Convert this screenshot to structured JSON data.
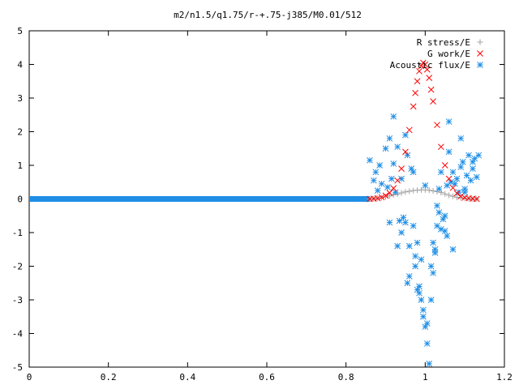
{
  "chart_data": {
    "type": "scatter",
    "title": "m2/n1.5/q1.75/r-+.75-j385/M0.01/512",
    "xlabel": "",
    "ylabel": "",
    "xlim": [
      0,
      1.2
    ],
    "ylim": [
      -5,
      5
    ],
    "x_ticks": [
      "0",
      "0.2",
      "0.4",
      "0.6",
      "0.8",
      "1",
      "1.2"
    ],
    "y_ticks": [
      "-5",
      "-4",
      "-3",
      "-2",
      "-1",
      "0",
      "1",
      "2",
      "3",
      "4",
      "5"
    ],
    "grid": false,
    "legend_position": "top-right",
    "series": [
      {
        "name": "R stress/E",
        "marker": "plus",
        "color": "#a0a0a0",
        "x": [
          0.86,
          0.87,
          0.88,
          0.89,
          0.9,
          0.91,
          0.92,
          0.93,
          0.94,
          0.95,
          0.96,
          0.97,
          0.98,
          0.99,
          1.0,
          1.01,
          1.02,
          1.03,
          1.04,
          1.05,
          1.06,
          1.07,
          1.08,
          1.09,
          1.1,
          1.11,
          1.12,
          1.13
        ],
        "y": [
          0.0,
          0.01,
          0.02,
          0.04,
          0.06,
          0.09,
          0.12,
          0.15,
          0.18,
          0.21,
          0.23,
          0.25,
          0.26,
          0.27,
          0.27,
          0.26,
          0.24,
          0.22,
          0.19,
          0.15,
          0.11,
          0.08,
          0.05,
          0.03,
          0.02,
          0.01,
          0.0,
          0.0
        ]
      },
      {
        "name": "G work/E",
        "marker": "cross",
        "color": "#ff0000",
        "x": [
          0.86,
          0.87,
          0.88,
          0.89,
          0.9,
          0.91,
          0.92,
          0.93,
          0.94,
          0.95,
          0.96,
          0.97,
          0.975,
          0.98,
          0.985,
          0.99,
          0.995,
          1.0,
          1.005,
          1.01,
          1.015,
          1.02,
          1.03,
          1.04,
          1.05,
          1.06,
          1.07,
          1.08,
          1.09,
          1.1,
          1.11,
          1.12,
          1.13
        ],
        "y": [
          0.0,
          0.01,
          0.02,
          0.05,
          0.1,
          0.18,
          0.32,
          0.55,
          0.9,
          1.4,
          2.05,
          2.75,
          3.15,
          3.5,
          3.8,
          3.95,
          4.05,
          4.0,
          3.85,
          3.6,
          3.25,
          2.9,
          2.2,
          1.55,
          1.0,
          0.6,
          0.33,
          0.17,
          0.08,
          0.04,
          0.02,
          0.01,
          0.0
        ]
      },
      {
        "name": "Acoustic flux/E",
        "marker": "star",
        "color": "#1f8fe6",
        "x": [
          0.86,
          0.87,
          0.875,
          0.88,
          0.885,
          0.89,
          0.9,
          0.905,
          0.91,
          0.915,
          0.92,
          0.925,
          0.93,
          0.935,
          0.94,
          0.945,
          0.95,
          0.955,
          0.96,
          0.965,
          0.97,
          0.975,
          0.98,
          0.985,
          0.99,
          0.995,
          1.0,
          1.005,
          1.01,
          1.015,
          1.02,
          1.025,
          1.03,
          1.035,
          1.04,
          1.045,
          1.05,
          1.055,
          1.06,
          1.065,
          1.07,
          1.075,
          1.08,
          1.085,
          1.09,
          1.095,
          1.1,
          1.105,
          1.11,
          1.115,
          1.12,
          1.125,
          1.13,
          1.135,
          0.92,
          0.95,
          0.97,
          1.0,
          1.03,
          1.06,
          0.93,
          0.96,
          0.99,
          1.04,
          1.07,
          1.1,
          0.91,
          0.94,
          0.98,
          1.02,
          1.05,
          1.09,
          1.12,
          0.955,
          0.975,
          0.995,
          1.015,
          1.035,
          1.055,
          0.985,
          1.005,
          1.025
        ],
        "y": [
          1.15,
          0.55,
          0.8,
          0.25,
          1.0,
          0.45,
          1.5,
          0.35,
          1.8,
          0.6,
          1.05,
          0.2,
          1.55,
          -0.65,
          0.6,
          -0.55,
          -0.7,
          1.3,
          -1.4,
          0.9,
          -0.8,
          -2.0,
          -1.3,
          -2.6,
          -3.0,
          -3.5,
          -3.8,
          -4.3,
          -4.9,
          -3.0,
          -2.2,
          -1.6,
          -0.8,
          0.3,
          0.8,
          -0.6,
          -0.95,
          0.4,
          1.4,
          0.5,
          0.8,
          0.45,
          0.6,
          0.2,
          0.95,
          1.1,
          0.3,
          0.7,
          1.3,
          0.55,
          0.9,
          1.2,
          0.65,
          1.3,
          2.45,
          1.9,
          0.8,
          0.4,
          -0.2,
          2.3,
          -1.4,
          -2.3,
          -1.8,
          -0.9,
          -1.5,
          0.2,
          -0.7,
          -1.0,
          -2.7,
          -1.3,
          -0.5,
          1.8,
          1.1,
          -2.5,
          -1.7,
          -3.3,
          -2.0,
          -0.4,
          -1.1,
          -2.8,
          -3.7,
          -1.5
        ]
      },
      {
        "name": "",
        "marker": "star",
        "color": "#1f8fe6",
        "role": "baseline",
        "x_range": [
          0,
          0.86
        ],
        "y_value": 0
      }
    ]
  }
}
